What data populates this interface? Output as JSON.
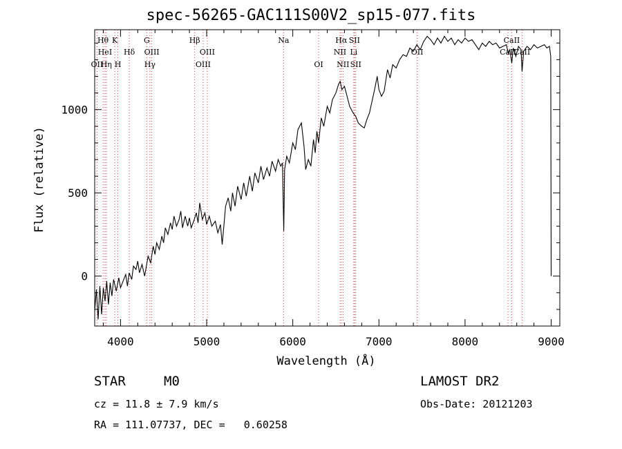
{
  "chart_data": {
    "type": "line",
    "title": "spec-56265-GAC111S00V2_sp15-077.fits",
    "xlabel": "Wavelength (Å)",
    "ylabel": "Flux (relative)",
    "xlim": [
      3700,
      9100
    ],
    "ylim": [
      -300,
      1480
    ],
    "xticks": [
      4000,
      5000,
      6000,
      7000,
      8000,
      9000
    ],
    "yticks": [
      0,
      500,
      1000
    ],
    "grid": false,
    "series": [
      {
        "points": [
          [
            3700,
            -210
          ],
          [
            3720,
            -80
          ],
          [
            3740,
            -260
          ],
          [
            3760,
            -60
          ],
          [
            3780,
            -230
          ],
          [
            3800,
            -70
          ],
          [
            3820,
            -150
          ],
          [
            3840,
            -30
          ],
          [
            3860,
            -170
          ],
          [
            3880,
            -40
          ],
          [
            3900,
            -120
          ],
          [
            3920,
            -20
          ],
          [
            3950,
            -90
          ],
          [
            3980,
            -10
          ],
          [
            4000,
            -70
          ],
          [
            4030,
            -30
          ],
          [
            4060,
            10
          ],
          [
            4080,
            -60
          ],
          [
            4100,
            20
          ],
          [
            4130,
            -20
          ],
          [
            4150,
            60
          ],
          [
            4180,
            40
          ],
          [
            4200,
            90
          ],
          [
            4220,
            20
          ],
          [
            4250,
            70
          ],
          [
            4280,
            0
          ],
          [
            4300,
            60
          ],
          [
            4320,
            120
          ],
          [
            4350,
            80
          ],
          [
            4380,
            180
          ],
          [
            4400,
            130
          ],
          [
            4420,
            200
          ],
          [
            4450,
            160
          ],
          [
            4480,
            240
          ],
          [
            4500,
            200
          ],
          [
            4520,
            290
          ],
          [
            4550,
            250
          ],
          [
            4580,
            320
          ],
          [
            4600,
            280
          ],
          [
            4620,
            360
          ],
          [
            4650,
            300
          ],
          [
            4680,
            340
          ],
          [
            4700,
            390
          ],
          [
            4720,
            290
          ],
          [
            4750,
            360
          ],
          [
            4780,
            300
          ],
          [
            4800,
            350
          ],
          [
            4820,
            290
          ],
          [
            4850,
            330
          ],
          [
            4880,
            380
          ],
          [
            4900,
            320
          ],
          [
            4920,
            440
          ],
          [
            4950,
            340
          ],
          [
            4980,
            380
          ],
          [
            5000,
            310
          ],
          [
            5030,
            360
          ],
          [
            5060,
            300
          ],
          [
            5100,
            330
          ],
          [
            5130,
            260
          ],
          [
            5160,
            310
          ],
          [
            5180,
            190
          ],
          [
            5200,
            300
          ],
          [
            5220,
            420
          ],
          [
            5250,
            470
          ],
          [
            5280,
            390
          ],
          [
            5300,
            500
          ],
          [
            5330,
            420
          ],
          [
            5360,
            540
          ],
          [
            5400,
            460
          ],
          [
            5430,
            560
          ],
          [
            5460,
            480
          ],
          [
            5500,
            600
          ],
          [
            5530,
            510
          ],
          [
            5560,
            620
          ],
          [
            5600,
            560
          ],
          [
            5630,
            660
          ],
          [
            5660,
            580
          ],
          [
            5700,
            650
          ],
          [
            5730,
            600
          ],
          [
            5760,
            690
          ],
          [
            5800,
            630
          ],
          [
            5830,
            700
          ],
          [
            5860,
            660
          ],
          [
            5880,
            680
          ],
          [
            5895,
            270
          ],
          [
            5905,
            640
          ],
          [
            5930,
            720
          ],
          [
            5960,
            680
          ],
          [
            6000,
            800
          ],
          [
            6030,
            760
          ],
          [
            6060,
            880
          ],
          [
            6100,
            920
          ],
          [
            6130,
            780
          ],
          [
            6150,
            640
          ],
          [
            6180,
            700
          ],
          [
            6210,
            660
          ],
          [
            6240,
            820
          ],
          [
            6260,
            740
          ],
          [
            6280,
            870
          ],
          [
            6300,
            800
          ],
          [
            6330,
            950
          ],
          [
            6360,
            900
          ],
          [
            6400,
            1020
          ],
          [
            6430,
            980
          ],
          [
            6460,
            1060
          ],
          [
            6500,
            1100
          ],
          [
            6530,
            1150
          ],
          [
            6550,
            1170
          ],
          [
            6570,
            1120
          ],
          [
            6600,
            1140
          ],
          [
            6630,
            1080
          ],
          [
            6660,
            1020
          ],
          [
            6700,
            980
          ],
          [
            6730,
            960
          ],
          [
            6760,
            920
          ],
          [
            6800,
            900
          ],
          [
            6830,
            890
          ],
          [
            6860,
            940
          ],
          [
            6890,
            980
          ],
          [
            6920,
            1050
          ],
          [
            6950,
            1120
          ],
          [
            6980,
            1200
          ],
          [
            7000,
            1120
          ],
          [
            7030,
            1080
          ],
          [
            7060,
            1110
          ],
          [
            7100,
            1240
          ],
          [
            7130,
            1190
          ],
          [
            7160,
            1270
          ],
          [
            7200,
            1250
          ],
          [
            7240,
            1300
          ],
          [
            7280,
            1330
          ],
          [
            7320,
            1320
          ],
          [
            7360,
            1370
          ],
          [
            7400,
            1350
          ],
          [
            7440,
            1390
          ],
          [
            7480,
            1360
          ],
          [
            7520,
            1410
          ],
          [
            7560,
            1440
          ],
          [
            7600,
            1420
          ],
          [
            7640,
            1390
          ],
          [
            7680,
            1430
          ],
          [
            7720,
            1400
          ],
          [
            7760,
            1440
          ],
          [
            7800,
            1410
          ],
          [
            7840,
            1430
          ],
          [
            7880,
            1390
          ],
          [
            7920,
            1420
          ],
          [
            7960,
            1400
          ],
          [
            8000,
            1430
          ],
          [
            8040,
            1410
          ],
          [
            8080,
            1420
          ],
          [
            8120,
            1390
          ],
          [
            8160,
            1360
          ],
          [
            8200,
            1400
          ],
          [
            8240,
            1380
          ],
          [
            8280,
            1410
          ],
          [
            8320,
            1390
          ],
          [
            8360,
            1400
          ],
          [
            8400,
            1370
          ],
          [
            8440,
            1380
          ],
          [
            8480,
            1390
          ],
          [
            8500,
            1340
          ],
          [
            8520,
            1360
          ],
          [
            8542,
            1280
          ],
          [
            8560,
            1370
          ],
          [
            8590,
            1320
          ],
          [
            8620,
            1380
          ],
          [
            8650,
            1360
          ],
          [
            8662,
            1230
          ],
          [
            8680,
            1350
          ],
          [
            8720,
            1380
          ],
          [
            8760,
            1360
          ],
          [
            8800,
            1390
          ],
          [
            8840,
            1370
          ],
          [
            8880,
            1380
          ],
          [
            8920,
            1390
          ],
          [
            8950,
            1370
          ],
          [
            8980,
            1380
          ],
          [
            8995,
            1320
          ],
          [
            9000,
            0
          ]
        ]
      }
    ],
    "lines": [
      {
        "x": 3797,
        "label": "Hθ",
        "row": 1
      },
      {
        "x": 3820,
        "label": "HeI",
        "row": 2
      },
      {
        "x": 3727,
        "label": "OII",
        "row": 3
      },
      {
        "x": 3835,
        "label": "Hη",
        "row": 3
      },
      {
        "x": 3934,
        "label": "K",
        "row": 1
      },
      {
        "x": 3969,
        "label": "H",
        "row": 3
      },
      {
        "x": 4102,
        "label": "Hδ",
        "row": 2
      },
      {
        "x": 4305,
        "label": "G",
        "row": 1
      },
      {
        "x": 4363,
        "label": "OIII",
        "row": 2
      },
      {
        "x": 4341,
        "label": "Hγ",
        "row": 3
      },
      {
        "x": 4861,
        "label": "Hβ",
        "row": 1
      },
      {
        "x": 4959,
        "label": "OIII",
        "row": 3
      },
      {
        "x": 5007,
        "label": "OIII",
        "row": 2
      },
      {
        "x": 5893,
        "label": "Na",
        "row": 1
      },
      {
        "x": 6300,
        "label": "OI",
        "row": 3
      },
      {
        "x": 6548,
        "label": "NII",
        "row": 2
      },
      {
        "x": 6563,
        "label": "Hα",
        "row": 1
      },
      {
        "x": 6583,
        "label": "NII",
        "row": 3
      },
      {
        "x": 6708,
        "label": "Li",
        "row": 2
      },
      {
        "x": 6716,
        "label": "SII",
        "row": 1
      },
      {
        "x": 6731,
        "label": "SII",
        "row": 3
      },
      {
        "x": 7444,
        "label": "OII",
        "row": 2
      },
      {
        "x": 8498,
        "label": "CaII",
        "row": 2
      },
      {
        "x": 8542,
        "label": "CaII",
        "row": 1
      },
      {
        "x": 8662,
        "label": "CaII",
        "row": 2
      }
    ]
  },
  "footer": {
    "object": "STAR",
    "subclass": "M0",
    "cz": "cz = 11.8 ± 7.9 km/s",
    "coords": "RA = 111.07737, DEC =   0.60258",
    "survey": "LAMOST DR2",
    "obs_date": "Obs-Date: 20121203"
  },
  "colors": {
    "line_marker": "#d23c3c",
    "spectrum": "#000000"
  }
}
